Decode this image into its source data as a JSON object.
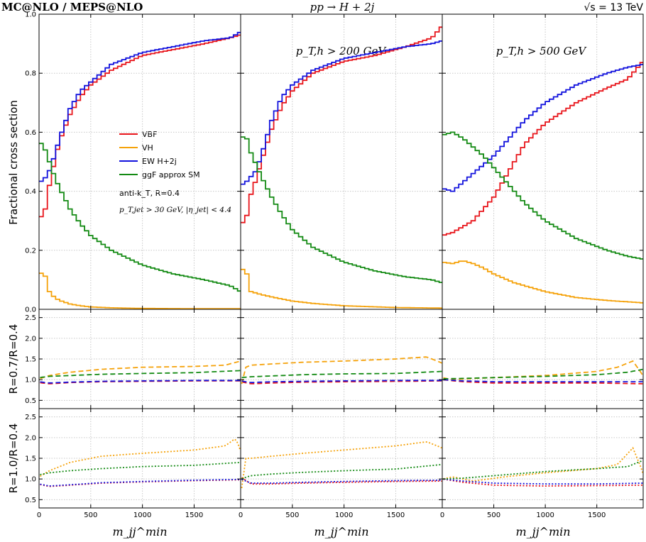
{
  "header": {
    "left": "MC@NLO / MEPS@NLO",
    "middle": "pp → H + 2j",
    "right": "√s = 13 TeV"
  },
  "panel_labels": [
    "",
    "p_T,h > 200 GeV",
    "p_T,h > 500 GeV"
  ],
  "legend": {
    "entries": [
      {
        "name": "VBF",
        "color": "#e8141a"
      },
      {
        "name": "VH",
        "color": "#f5a20a"
      },
      {
        "name": "EW H+2j",
        "color": "#1111dd"
      },
      {
        "name": "ggF approx SM",
        "color": "#138a13"
      }
    ],
    "note1": "anti-k_T, R=0.4",
    "note2": "p_T,jet > 30 GeV, |η_jet| < 4.4"
  },
  "axes": {
    "main_ylabel": "Fractional cross section",
    "ratio1_ylabel": "R=0.7/R=0.4",
    "ratio2_ylabel": "R=1.0/R=0.4",
    "xlabel": "m_jj^min",
    "xlim": [
      0,
      1950
    ],
    "xticks": [
      "0",
      "500",
      "1000",
      "1500"
    ],
    "xtick_values": [
      0,
      500,
      1000,
      1500
    ],
    "main_ylim": [
      0,
      1.0
    ],
    "main_yticks": [
      "0.0",
      "0.2",
      "0.4",
      "0.6",
      "0.8",
      "1.0"
    ],
    "ratio_ylim": [
      0.3,
      2.7
    ],
    "ratio_yticks": [
      "0.5",
      "1.0",
      "1.5",
      "2.0",
      "2.5"
    ]
  },
  "chart_data": [
    {
      "type": "line",
      "panel": "main-1",
      "series": [
        {
          "name": "VBF",
          "x": [
            0,
            50,
            100,
            150,
            200,
            300,
            400,
            500,
            700,
            1000,
            1300,
            1600,
            1850,
            1950
          ],
          "values": [
            0.31,
            0.32,
            0.42,
            0.5,
            0.57,
            0.66,
            0.72,
            0.76,
            0.81,
            0.86,
            0.88,
            0.9,
            0.92,
            0.93
          ]
        },
        {
          "name": "VH",
          "x": [
            0,
            50,
            100,
            150,
            200,
            300,
            400,
            500,
            700,
            1000,
            1500,
            1950
          ],
          "values": [
            0.12,
            0.125,
            0.06,
            0.04,
            0.03,
            0.018,
            0.012,
            0.008,
            0.005,
            0.003,
            0.002,
            0.002
          ]
        },
        {
          "name": "EW H+2j",
          "x": [
            0,
            50,
            100,
            150,
            200,
            300,
            400,
            500,
            700,
            1000,
            1300,
            1600,
            1850,
            1950
          ],
          "values": [
            0.43,
            0.44,
            0.47,
            0.52,
            0.58,
            0.68,
            0.74,
            0.77,
            0.83,
            0.87,
            0.89,
            0.91,
            0.92,
            0.94
          ]
        },
        {
          "name": "ggF approx SM",
          "x": [
            0,
            50,
            100,
            150,
            200,
            300,
            400,
            500,
            700,
            1000,
            1300,
            1600,
            1850,
            1950
          ],
          "values": [
            0.57,
            0.55,
            0.5,
            0.45,
            0.41,
            0.34,
            0.29,
            0.25,
            0.2,
            0.15,
            0.12,
            0.1,
            0.08,
            0.06
          ]
        }
      ]
    },
    {
      "type": "line",
      "panel": "main-2",
      "series": [
        {
          "name": "VBF",
          "x": [
            0,
            50,
            100,
            150,
            200,
            300,
            400,
            500,
            700,
            1000,
            1300,
            1600,
            1850,
            1950
          ],
          "values": [
            0.29,
            0.3,
            0.39,
            0.44,
            0.5,
            0.61,
            0.69,
            0.74,
            0.8,
            0.84,
            0.86,
            0.89,
            0.92,
            0.96
          ]
        },
        {
          "name": "VH",
          "x": [
            0,
            50,
            100,
            150,
            200,
            300,
            400,
            500,
            700,
            1000,
            1500,
            1950
          ],
          "values": [
            0.135,
            0.135,
            0.06,
            0.055,
            0.05,
            0.042,
            0.035,
            0.028,
            0.02,
            0.012,
            0.006,
            0.004
          ]
        },
        {
          "name": "EW H+2j",
          "x": [
            0,
            50,
            100,
            150,
            200,
            300,
            400,
            500,
            700,
            1000,
            1300,
            1600,
            1850,
            1950
          ],
          "values": [
            0.42,
            0.43,
            0.45,
            0.47,
            0.52,
            0.64,
            0.72,
            0.76,
            0.81,
            0.85,
            0.87,
            0.89,
            0.9,
            0.91
          ]
        },
        {
          "name": "ggF approx SM",
          "x": [
            0,
            50,
            100,
            150,
            200,
            300,
            400,
            500,
            700,
            1000,
            1300,
            1600,
            1850,
            1950
          ],
          "values": [
            0.58,
            0.59,
            0.53,
            0.49,
            0.45,
            0.38,
            0.32,
            0.27,
            0.21,
            0.16,
            0.13,
            0.11,
            0.1,
            0.09
          ]
        }
      ]
    },
    {
      "type": "line",
      "panel": "main-3",
      "series": [
        {
          "name": "VBF",
          "x": [
            0,
            100,
            200,
            300,
            400,
            500,
            600,
            700,
            800,
            1000,
            1300,
            1600,
            1800,
            1900,
            1950
          ],
          "values": [
            0.25,
            0.26,
            0.28,
            0.3,
            0.34,
            0.38,
            0.44,
            0.5,
            0.56,
            0.63,
            0.7,
            0.75,
            0.78,
            0.82,
            0.84
          ]
        },
        {
          "name": "VH",
          "x": [
            0,
            100,
            200,
            300,
            400,
            500,
            700,
            1000,
            1300,
            1600,
            1950
          ],
          "values": [
            0.16,
            0.155,
            0.165,
            0.155,
            0.14,
            0.12,
            0.09,
            0.06,
            0.04,
            0.03,
            0.022
          ]
        },
        {
          "name": "EW H+2j",
          "x": [
            0,
            100,
            200,
            300,
            400,
            500,
            600,
            700,
            800,
            1000,
            1300,
            1600,
            1800,
            1950
          ],
          "values": [
            0.41,
            0.4,
            0.43,
            0.46,
            0.49,
            0.52,
            0.56,
            0.6,
            0.64,
            0.7,
            0.76,
            0.8,
            0.82,
            0.83
          ]
        },
        {
          "name": "ggF approx SM",
          "x": [
            0,
            100,
            200,
            300,
            400,
            500,
            600,
            700,
            800,
            1000,
            1300,
            1600,
            1800,
            1950
          ],
          "values": [
            0.59,
            0.6,
            0.58,
            0.55,
            0.52,
            0.48,
            0.44,
            0.4,
            0.36,
            0.3,
            0.24,
            0.2,
            0.18,
            0.17
          ]
        }
      ]
    },
    {
      "type": "line",
      "panel": "ratio1-1",
      "series": [
        {
          "name": "VBF",
          "x": [
            0,
            100,
            300,
            600,
            1000,
            1500,
            1950
          ],
          "values": [
            0.93,
            0.9,
            0.93,
            0.95,
            0.96,
            0.97,
            0.97
          ]
        },
        {
          "name": "VH",
          "x": [
            0,
            100,
            300,
            600,
            1000,
            1500,
            1800,
            1950
          ],
          "values": [
            1.02,
            1.1,
            1.18,
            1.25,
            1.3,
            1.32,
            1.35,
            1.45
          ]
        },
        {
          "name": "EW H+2j",
          "x": [
            0,
            100,
            300,
            600,
            1000,
            1500,
            1950
          ],
          "values": [
            0.95,
            0.92,
            0.94,
            0.96,
            0.97,
            0.98,
            0.98
          ]
        },
        {
          "name": "ggF approx SM",
          "x": [
            0,
            100,
            300,
            600,
            1000,
            1500,
            1950
          ],
          "values": [
            1.05,
            1.08,
            1.1,
            1.13,
            1.15,
            1.17,
            1.22
          ]
        }
      ]
    },
    {
      "type": "line",
      "panel": "ratio1-2",
      "series": [
        {
          "name": "VBF",
          "x": [
            0,
            100,
            300,
            600,
            1000,
            1500,
            1950
          ],
          "values": [
            0.95,
            0.9,
            0.92,
            0.94,
            0.95,
            0.96,
            0.97
          ]
        },
        {
          "name": "VH",
          "x": [
            0,
            50,
            100,
            300,
            600,
            1000,
            1500,
            1800,
            1950
          ],
          "values": [
            0.8,
            1.3,
            1.35,
            1.38,
            1.42,
            1.45,
            1.5,
            1.55,
            1.4
          ]
        },
        {
          "name": "EW H+2j",
          "x": [
            0,
            100,
            300,
            600,
            1000,
            1500,
            1950
          ],
          "values": [
            0.97,
            0.93,
            0.95,
            0.96,
            0.97,
            0.98,
            0.98
          ]
        },
        {
          "name": "ggF approx SM",
          "x": [
            0,
            100,
            300,
            600,
            1000,
            1500,
            1950
          ],
          "values": [
            1.05,
            1.07,
            1.09,
            1.12,
            1.14,
            1.15,
            1.2
          ]
        }
      ]
    },
    {
      "type": "line",
      "panel": "ratio1-3",
      "series": [
        {
          "name": "VBF",
          "x": [
            0,
            200,
            500,
            1000,
            1500,
            1950
          ],
          "values": [
            1.0,
            0.95,
            0.92,
            0.92,
            0.92,
            0.9
          ]
        },
        {
          "name": "VH",
          "x": [
            0,
            100,
            300,
            600,
            1000,
            1500,
            1700,
            1850,
            1950
          ],
          "values": [
            1.05,
            1.0,
            1.03,
            1.06,
            1.1,
            1.2,
            1.3,
            1.45,
            1.1
          ]
        },
        {
          "name": "EW H+2j",
          "x": [
            0,
            200,
            500,
            1000,
            1500,
            1950
          ],
          "values": [
            1.0,
            0.97,
            0.95,
            0.95,
            0.95,
            0.95
          ]
        },
        {
          "name": "ggF approx SM",
          "x": [
            0,
            200,
            500,
            1000,
            1500,
            1800,
            1950
          ],
          "values": [
            1.02,
            1.03,
            1.05,
            1.08,
            1.12,
            1.18,
            1.25
          ]
        }
      ]
    },
    {
      "type": "line",
      "panel": "ratio2-1",
      "series": [
        {
          "name": "VBF",
          "x": [
            0,
            100,
            300,
            600,
            1000,
            1500,
            1950
          ],
          "values": [
            0.87,
            0.82,
            0.85,
            0.9,
            0.93,
            0.96,
            0.98
          ]
        },
        {
          "name": "VH",
          "x": [
            0,
            100,
            300,
            600,
            1000,
            1500,
            1800,
            1900,
            1950
          ],
          "values": [
            1.05,
            1.2,
            1.4,
            1.55,
            1.62,
            1.7,
            1.8,
            1.98,
            1.7
          ]
        },
        {
          "name": "EW H+2j",
          "x": [
            0,
            100,
            300,
            600,
            1000,
            1500,
            1950
          ],
          "values": [
            0.88,
            0.83,
            0.86,
            0.91,
            0.94,
            0.97,
            0.99
          ]
        },
        {
          "name": "ggF approx SM",
          "x": [
            0,
            100,
            300,
            600,
            1000,
            1500,
            1950
          ],
          "values": [
            1.1,
            1.15,
            1.2,
            1.25,
            1.3,
            1.33,
            1.4
          ]
        }
      ]
    },
    {
      "type": "line",
      "panel": "ratio2-2",
      "series": [
        {
          "name": "VBF",
          "x": [
            0,
            100,
            300,
            600,
            1000,
            1500,
            1950
          ],
          "values": [
            1.05,
            0.88,
            0.88,
            0.9,
            0.92,
            0.94,
            0.95
          ]
        },
        {
          "name": "VH",
          "x": [
            0,
            50,
            100,
            300,
            600,
            1000,
            1500,
            1800,
            1950
          ],
          "values": [
            0.6,
            1.5,
            1.5,
            1.55,
            1.62,
            1.7,
            1.8,
            1.9,
            1.75
          ]
        },
        {
          "name": "EW H+2j",
          "x": [
            0,
            100,
            300,
            600,
            1000,
            1500,
            1950
          ],
          "values": [
            1.0,
            0.9,
            0.9,
            0.92,
            0.94,
            0.96,
            0.97
          ]
        },
        {
          "name": "ggF approx SM",
          "x": [
            0,
            100,
            300,
            600,
            1000,
            1500,
            1950
          ],
          "values": [
            1.0,
            1.08,
            1.12,
            1.16,
            1.2,
            1.24,
            1.35
          ]
        }
      ]
    },
    {
      "type": "line",
      "panel": "ratio2-3",
      "series": [
        {
          "name": "VBF",
          "x": [
            0,
            200,
            500,
            1000,
            1500,
            1950
          ],
          "values": [
            1.0,
            0.92,
            0.85,
            0.83,
            0.84,
            0.85
          ]
        },
        {
          "name": "VH",
          "x": [
            0,
            100,
            300,
            600,
            1000,
            1500,
            1700,
            1850,
            1950
          ],
          "values": [
            1.0,
            1.05,
            0.95,
            1.05,
            1.15,
            1.25,
            1.35,
            1.75,
            1.15
          ]
        },
        {
          "name": "EW H+2j",
          "x": [
            0,
            200,
            500,
            1000,
            1500,
            1950
          ],
          "values": [
            1.0,
            0.95,
            0.9,
            0.88,
            0.88,
            0.9
          ]
        },
        {
          "name": "ggF approx SM",
          "x": [
            0,
            200,
            500,
            1000,
            1500,
            1800,
            1950
          ],
          "values": [
            1.0,
            1.02,
            1.08,
            1.18,
            1.25,
            1.3,
            1.45
          ]
        }
      ]
    }
  ]
}
